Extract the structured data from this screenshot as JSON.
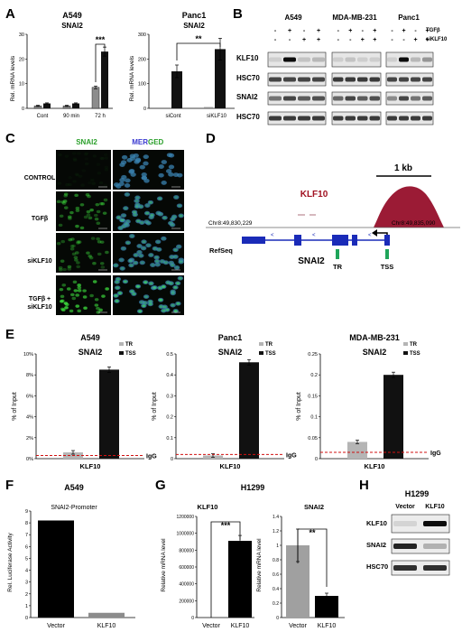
{
  "panels": {
    "A": {
      "letter": "A",
      "left": {
        "title": "A549",
        "subtitle": "SNAI2",
        "ylabel": "Rel. mRNA levels",
        "ylim": [
          0,
          30
        ],
        "yticks": [
          "0",
          "10",
          "20",
          "30"
        ],
        "categories": [
          "Cont",
          "90 min",
          "72 h"
        ],
        "series_gray": [
          1,
          1,
          8.5
        ],
        "series_black": [
          2,
          2,
          23
        ],
        "sig": "***"
      },
      "right": {
        "title": "Panc1",
        "subtitle": "SNAI2",
        "ylabel": "Rel. mRNA levels",
        "ylim": [
          0,
          300
        ],
        "yticks": [
          "0",
          "100",
          "200",
          "300"
        ],
        "categories": [
          "siCont",
          "siKLF10"
        ],
        "series_gray": [
          0,
          5
        ],
        "series_black": [
          150,
          240
        ],
        "sig": "**"
      }
    },
    "B": {
      "letter": "B",
      "cell_lines": [
        "A549",
        "MDA-MB-231",
        "Panc1"
      ],
      "row_tgfb": [
        "-",
        "+",
        "-",
        "+",
        "-",
        "+",
        "-",
        "+",
        "-",
        "+",
        "-",
        "+"
      ],
      "row_si": [
        "-",
        "-",
        "+",
        "+",
        "-",
        "-",
        "+",
        "+",
        "-",
        "-",
        "+",
        "+"
      ],
      "tgfb_label": "TGFβ",
      "si_label": "siKLF10",
      "blot_labels": [
        "KLF10",
        "HSC70",
        "SNAI2",
        "HSC70"
      ]
    },
    "C": {
      "letter": "C",
      "col_headers": [
        "SNAI2",
        "MERGED"
      ],
      "merged_mer": "MER",
      "merged_ged": "GED",
      "row_labels": [
        "CONTROL",
        "TGFβ",
        "siKLF10",
        "TGFβ +",
        "siKLF10"
      ]
    },
    "D": {
      "letter": "D",
      "scale": "1 kb",
      "gene_label": "KLF10",
      "coord_left": "Chr8:49,830,229",
      "coord_right": "Chr8:49,835,090",
      "refseq": "RefSeq",
      "gene": "SNAI2",
      "tr": "TR",
      "tss": "TSS"
    },
    "E": {
      "letter": "E",
      "charts": [
        {
          "title": "A549",
          "subtitle": "SNAI2",
          "ylabel": "% of Input",
          "yticks": [
            "0%",
            "2%",
            "4%",
            "6%",
            "8%",
            "10%"
          ],
          "ylim": [
            0,
            10
          ],
          "tr": 0.6,
          "tss": 8.5,
          "igg": 0.3,
          "xlabel": "KLF10"
        },
        {
          "title": "Panc1",
          "subtitle": "SNAI2",
          "ylabel": "% of Input",
          "yticks": [
            "0",
            "0.1",
            "0.2",
            "0.3",
            "0.4",
            "0.5"
          ],
          "ylim": [
            0,
            0.5
          ],
          "tr": 0.015,
          "tss": 0.46,
          "igg": 0.02,
          "xlabel": "KLF10"
        },
        {
          "title": "MDA-MB-231",
          "subtitle": "SNAI2",
          "ylabel": "% of Input",
          "yticks": [
            "0",
            "0.05",
            "0.1",
            "0.15",
            "0.2",
            "0.25"
          ],
          "ylim": [
            0,
            0.25
          ],
          "tr": 0.04,
          "tss": 0.2,
          "igg": 0.015,
          "xlabel": "KLF10"
        }
      ],
      "legend": [
        "TR",
        "TSS"
      ],
      "igg_label": "IgG"
    },
    "F": {
      "letter": "F",
      "title": "A549",
      "subtitle": "SNAI2-Promoter",
      "ylabel": "Rel. Luciferase Activity",
      "yticks": [
        "0",
        "1",
        "2",
        "3",
        "4",
        "5",
        "6",
        "7",
        "8",
        "9"
      ],
      "ylim": [
        0,
        9
      ],
      "categories": [
        "Vector",
        "KLF10"
      ],
      "values": [
        8.2,
        0.4
      ]
    },
    "G": {
      "letter": "G",
      "title": "H1299",
      "left": {
        "subtitle": "KLF10",
        "ylabel": "Relative mRNA level",
        "yticks": [
          "0",
          "200000",
          "400000",
          "600000",
          "800000",
          "1000000",
          "1200000"
        ],
        "ylim": [
          0,
          1200000
        ],
        "categories": [
          "Vector",
          "KLF10"
        ],
        "values": [
          0,
          910000
        ],
        "sig": "***"
      },
      "right": {
        "subtitle": "SNAI2",
        "ylabel": "Relative mRNA level",
        "yticks": [
          "0",
          "0.2",
          "0.4",
          "0.6",
          "0.8",
          "1",
          "1.2",
          "1.4"
        ],
        "ylim": [
          0,
          1.4
        ],
        "categories": [
          "Vector",
          "KLF10"
        ],
        "values": [
          1.0,
          0.3
        ],
        "sig": "**"
      }
    },
    "H": {
      "letter": "H",
      "title": "H1299",
      "cols": [
        "Vector",
        "KLF10"
      ],
      "rows": [
        "KLF10",
        "SNAI2",
        "HSC70"
      ]
    }
  }
}
